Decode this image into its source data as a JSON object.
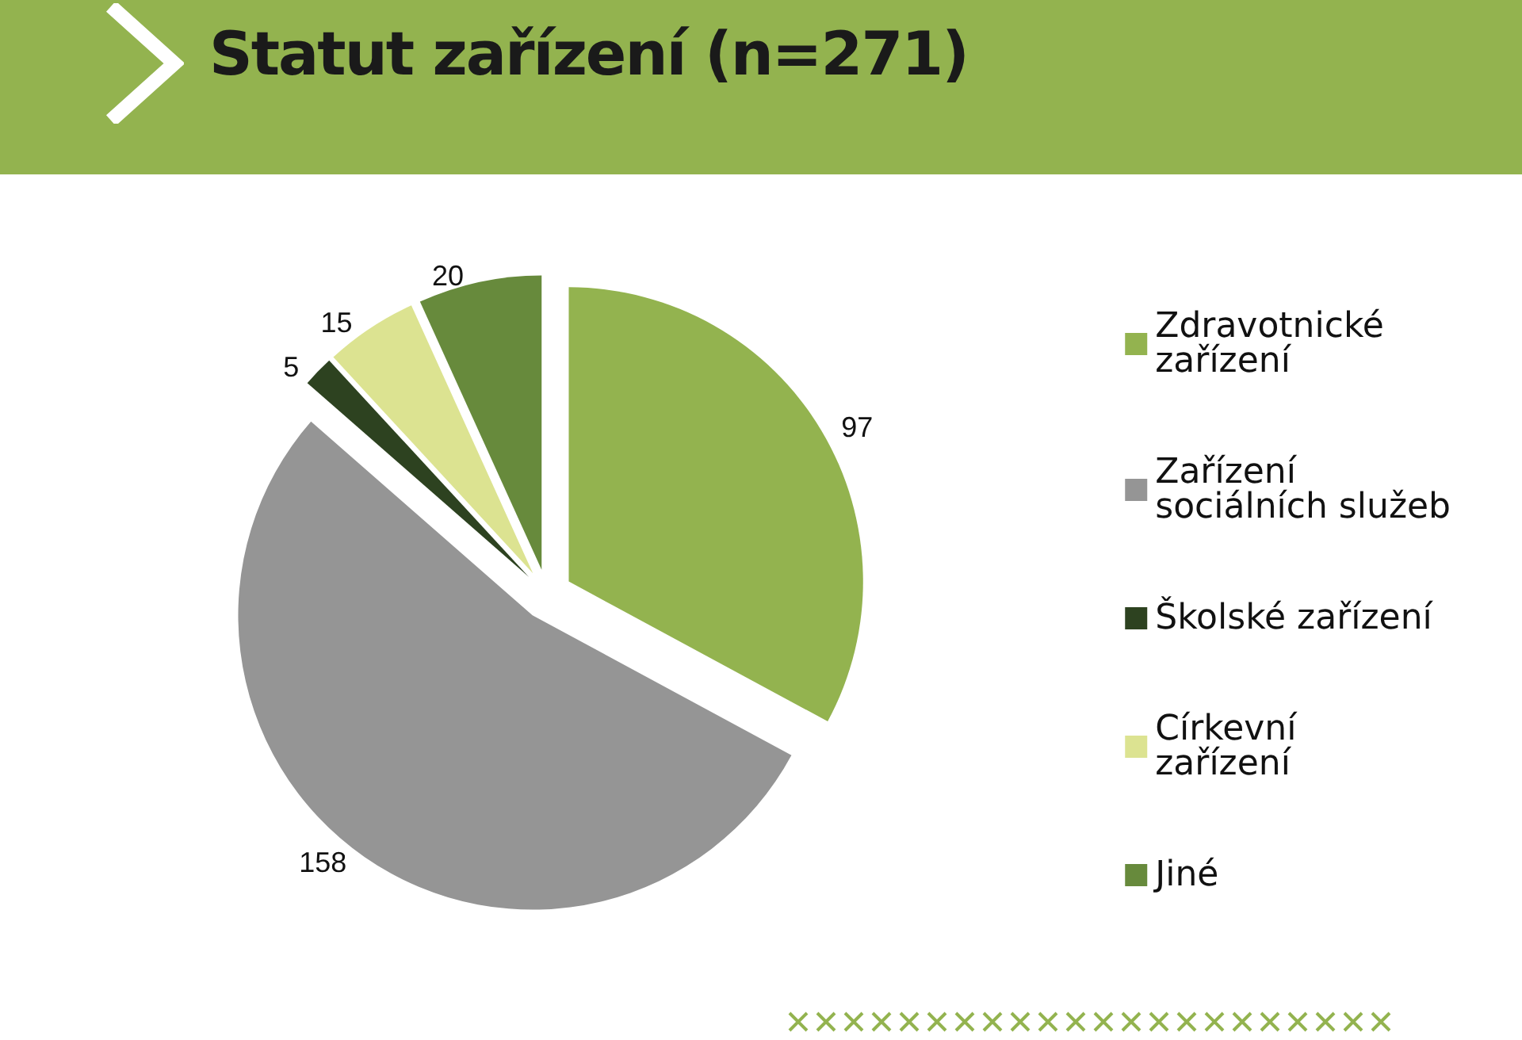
{
  "chart_data": {
    "type": "pie",
    "title": "Statut zařízení (n=271)",
    "categories": [
      "Zdravotnické zařízení",
      "Zařízení sociálních služeb",
      "Školské zařízení",
      "Církevní zařízení",
      "Jiné"
    ],
    "values": [
      97,
      158,
      5,
      15,
      20
    ],
    "colors": [
      "#93b34f",
      "#959595",
      "#2d4220",
      "#dce391",
      "#678a3c"
    ],
    "data_labels": true,
    "legend": "right"
  }
}
